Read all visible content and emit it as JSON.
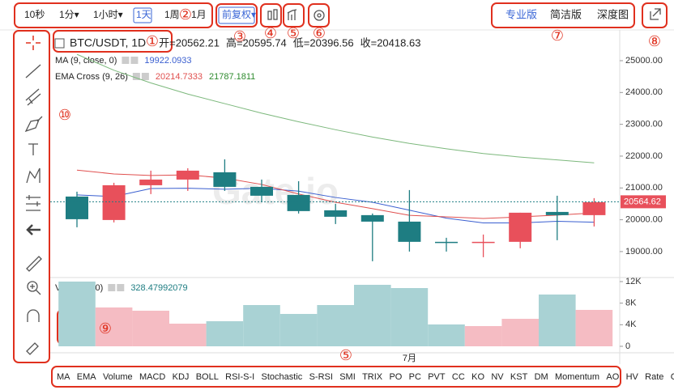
{
  "toolbar": {
    "intervals": [
      "10秒",
      "1分▾",
      "1小时▾",
      "1天",
      "1周",
      "1月"
    ],
    "adjust": "前复权▾",
    "views": [
      "专业版",
      "简洁版",
      "深度图"
    ]
  },
  "annotations": [
    "①",
    "②",
    "③",
    "④",
    "⑤",
    "⑥",
    "⑦",
    "⑧",
    "⑨",
    "⑩",
    "⑤"
  ],
  "legend": {
    "symbol": "BTC/USDT, 1D",
    "ohlc": [
      "开=20562.21",
      "高=20595.74",
      "低=20396.56",
      "收=20418.63"
    ]
  },
  "indicators": [
    {
      "name": "MA (9, close, 0)",
      "values": [
        19922.0933
      ],
      "lines": [
        {
          "color": "#3a5fd0",
          "values": [
            20780,
            20730,
            20980,
            20990,
            20960,
            20990,
            20900,
            20700,
            20550,
            20300,
            20050,
            19900,
            19900,
            19950,
            19922
          ]
        }
      ]
    },
    {
      "name": "EMA Cross (9, 26)",
      "values": [
        20214.7333,
        21787.1811
      ],
      "lines": [
        {
          "color": "#e0504f",
          "values": [
            21560,
            21440,
            21390,
            21410,
            21310,
            21110,
            20810,
            20550,
            20350,
            20140,
            20090,
            20040,
            20090,
            20145,
            20214
          ]
        },
        {
          "color": "#7cb87c",
          "values": [
            25200,
            24700,
            24300,
            23950,
            23650,
            23350,
            23080,
            22830,
            22600,
            22400,
            22230,
            22080,
            21970,
            21880,
            21790
          ]
        }
      ]
    },
    {
      "name": "Volume (20)",
      "values": [
        328.47992079
      ]
    }
  ],
  "watermark": "Gate.io",
  "chart_data": {
    "type": "candlestick",
    "open": [
      20729,
      19992,
      21085,
      21263,
      21492,
      21034,
      20780,
      20297,
      20145,
      19941,
      19306,
      19280,
      19306,
      20246,
      20145
    ],
    "high": [
      20882,
      21162,
      21543,
      21619,
      21899,
      21263,
      21212,
      20501,
      20196,
      20933,
      19433,
      19535,
      20221,
      20755,
      20679
    ],
    "low": [
      19763,
      19916,
      20806,
      20907,
      20907,
      20551,
      20196,
      19865,
      18696,
      19000,
      19000,
      18823,
      19103,
      19357,
      19789
    ],
    "close": [
      20017,
      21085,
      21263,
      21543,
      21034,
      20755,
      20272,
      20094,
      19941,
      19306,
      19280,
      19306,
      20221,
      20145,
      20551
    ],
    "up_color": "#e8505b",
    "down_color": "#1e7d82",
    "ylim": [
      18260,
      25890
    ],
    "yticks": [
      {
        "value": 25000,
        "label": "25000.00"
      },
      {
        "value": 24000,
        "label": "24000.00"
      },
      {
        "value": 23000,
        "label": "23000.00"
      },
      {
        "value": 22000,
        "label": "22000.00"
      },
      {
        "value": 21000,
        "label": "21000.00"
      },
      {
        "value": 20000,
        "label": "20000.00"
      },
      {
        "value": 19000,
        "label": "19000.00"
      }
    ],
    "last_price": 20564.62,
    "volume": [
      12000,
      7200,
      6600,
      4200,
      4650,
      7650,
      6000,
      7650,
      11400,
      10800,
      4050,
      3750,
      5100,
      9600,
      6750
    ],
    "volume_up_color": "#f5bcc3",
    "volume_down_color": "#a9d2d4",
    "y2lim": [
      0,
      12000
    ],
    "y2ticks": [
      {
        "value": 12000,
        "label": "12K"
      },
      {
        "value": 8000,
        "label": "8K"
      },
      {
        "value": 4000,
        "label": "4K"
      },
      0
    ],
    "xlabel": "7月"
  },
  "indicator_bar": [
    "MA",
    "EMA",
    "Volume",
    "MACD",
    "KDJ",
    "BOLL",
    "RSI-S-I",
    "Stochastic",
    "S-RSI",
    "SMI",
    "TRIX",
    "PO",
    "PC",
    "PVT",
    "CC",
    "KO",
    "NV",
    "KST",
    "DM",
    "Momentum",
    "AO",
    "HV",
    "Rate",
    "CCI"
  ]
}
